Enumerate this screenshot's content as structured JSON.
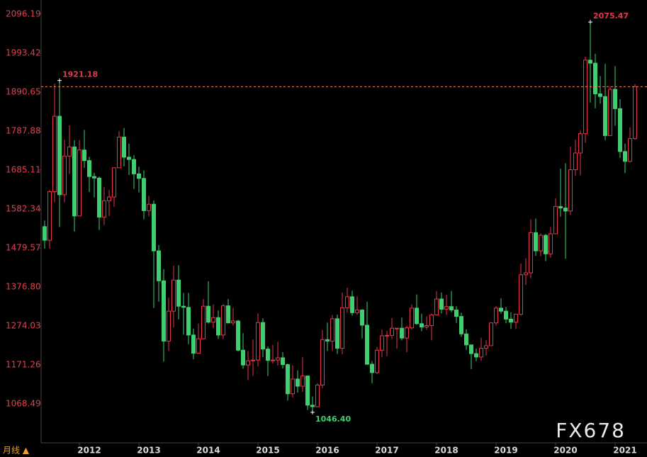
{
  "chart_data": {
    "type": "candlestick",
    "up_color": "#e8354b",
    "down_color": "#3fcf6f",
    "ylim": [
      965.72,
      2133.56
    ],
    "yticks": [
      2096.19,
      1993.42,
      1890.65,
      1787.88,
      1685.11,
      1582.34,
      1479.57,
      {
        "value": 1376.8,
        "label": "1376.80"
      },
      1274.03,
      1171.26,
      1068.49
    ],
    "categories": [
      null,
      null,
      null,
      null,
      null,
      null,
      null,
      "2012",
      null,
      null,
      null,
      null,
      null,
      null,
      null,
      null,
      null,
      null,
      null,
      "2013",
      null,
      null,
      null,
      null,
      null,
      null,
      null,
      null,
      null,
      null,
      null,
      "2014",
      null,
      null,
      null,
      null,
      null,
      null,
      null,
      null,
      null,
      null,
      null,
      "2015",
      null,
      null,
      null,
      null,
      null,
      null,
      null,
      null,
      null,
      null,
      null,
      "2016",
      null,
      null,
      null,
      null,
      null,
      null,
      null,
      null,
      null,
      null,
      null,
      "2017",
      null,
      null,
      null,
      null,
      null,
      null,
      null,
      null,
      null,
      null,
      null,
      "2018",
      null,
      null,
      null,
      null,
      null,
      null,
      null,
      null,
      null,
      null,
      null,
      "2019",
      null,
      null,
      null,
      null,
      null,
      null,
      null,
      null,
      null,
      null,
      null,
      "2020",
      null,
      null,
      null,
      null,
      null,
      null,
      null,
      null,
      null,
      null,
      null,
      "2021",
      null,
      null,
      null,
      null
    ],
    "open": [
      1536,
      1500,
      1628,
      1827,
      1620,
      1722,
      1746,
      1564,
      1738,
      1710,
      1668,
      1664,
      1561,
      1604,
      1614,
      1691,
      1772,
      1719,
      1713,
      1675,
      1663,
      1578,
      1595,
      1472,
      1393,
      1234,
      1313,
      1395,
      1326,
      1323,
      1250,
      1202,
      1240,
      1326,
      1284,
      1296,
      1250,
      1327,
      1282,
      1287,
      1210,
      1171,
      1182,
      1184,
      1283,
      1213,
      1183,
      1184,
      1190,
      1172,
      1095,
      1134,
      1115,
      1142,
      1065,
      1061,
      1118,
      1238,
      1234,
      1293,
      1215,
      1322,
      1351,
      1309,
      1316,
      1276,
      1173,
      1151,
      1210,
      1248,
      1249,
      1268,
      1268,
      1242,
      1269,
      1321,
      1280,
      1271,
      1275,
      1303,
      1345,
      1318,
      1325,
      1316,
      1299,
      1253,
      1224,
      1201,
      1192,
      1215,
      1222,
      1282,
      1321,
      1313,
      1292,
      1284,
      1305,
      1409,
      1414,
      1520,
      1472,
      1513,
      1464,
      1517,
      1589,
      1585,
      1577,
      1686,
      1730,
      1781,
      1975,
      1967,
      1886,
      1879,
      1776,
      1898,
      1847,
      1734,
      1708,
      1768
    ],
    "high": [
      1552,
      1632,
      1913,
      1921.18,
      1765,
      1803,
      1764,
      1764,
      1791,
      1720,
      1678,
      1668,
      1640,
      1632,
      1692,
      1788,
      1796,
      1755,
      1724,
      1694,
      1684,
      1617,
      1605,
      1487,
      1424,
      1348,
      1433,
      1434,
      1361,
      1361,
      1267,
      1280,
      1345,
      1392,
      1331,
      1315,
      1332,
      1345,
      1322,
      1290,
      1255,
      1208,
      1238,
      1307,
      1294,
      1220,
      1224,
      1232,
      1205,
      1175,
      1170,
      1157,
      1191,
      1142,
      1088,
      1123,
      1263,
      1283,
      1303,
      1304,
      1362,
      1375,
      1367,
      1352,
      1318,
      1338,
      1181,
      1219,
      1264,
      1261,
      1295,
      1269,
      1296,
      1274,
      1331,
      1357,
      1306,
      1299,
      1307,
      1366,
      1362,
      1356,
      1366,
      1326,
      1309,
      1265,
      1225,
      1214,
      1243,
      1237,
      1284,
      1326,
      1347,
      1324,
      1310,
      1306,
      1439,
      1452,
      1555,
      1557,
      1518,
      1516,
      1535,
      1611,
      1689,
      1703,
      1747,
      1765,
      1789,
      1984,
      2075.47,
      1992,
      1933,
      1965,
      1906,
      1959,
      1872,
      1755,
      1798,
      1912
    ],
    "low": [
      1478,
      1478,
      1600,
      1535,
      1600,
      1675,
      1523,
      1564,
      1691,
      1627,
      1613,
      1527,
      1540,
      1564,
      1588,
      1691,
      1695,
      1672,
      1635,
      1626,
      1555,
      1563,
      1321,
      1338,
      1180,
      1208,
      1270,
      1291,
      1251,
      1226,
      1186,
      1202,
      1238,
      1280,
      1268,
      1240,
      1240,
      1281,
      1275,
      1206,
      1161,
      1131,
      1142,
      1167,
      1192,
      1142,
      1175,
      1169,
      1162,
      1077,
      1085,
      1098,
      1100,
      1052,
      1046.4,
      1061,
      1110,
      1208,
      1208,
      1200,
      1199,
      1310,
      1301,
      1304,
      1241,
      1171,
      1123,
      1147,
      1191,
      1194,
      1240,
      1214,
      1236,
      1205,
      1264,
      1277,
      1260,
      1264,
      1236,
      1302,
      1307,
      1303,
      1310,
      1282,
      1245,
      1211,
      1160,
      1181,
      1182,
      1196,
      1221,
      1275,
      1306,
      1281,
      1266,
      1266,
      1301,
      1382,
      1400,
      1459,
      1458,
      1445,
      1454,
      1517,
      1562,
      1451,
      1567,
      1670,
      1671,
      1757,
      1863,
      1848,
      1860,
      1764,
      1775,
      1802,
      1717,
      1677,
      1705,
      1765
    ],
    "close": [
      1500,
      1628,
      1827,
      1620,
      1722,
      1746,
      1564,
      1738,
      1710,
      1668,
      1664,
      1561,
      1604,
      1614,
      1691,
      1772,
      1719,
      1713,
      1675,
      1663,
      1578,
      1595,
      1472,
      1393,
      1234,
      1313,
      1395,
      1326,
      1323,
      1250,
      1202,
      1240,
      1326,
      1284,
      1296,
      1250,
      1327,
      1282,
      1287,
      1210,
      1171,
      1182,
      1184,
      1283,
      1213,
      1183,
      1184,
      1190,
      1172,
      1095,
      1134,
      1115,
      1142,
      1065,
      1061,
      1118,
      1238,
      1234,
      1293,
      1215,
      1322,
      1351,
      1309,
      1316,
      1276,
      1173,
      1151,
      1210,
      1248,
      1249,
      1268,
      1268,
      1242,
      1269,
      1321,
      1280,
      1271,
      1275,
      1303,
      1345,
      1318,
      1325,
      1316,
      1299,
      1253,
      1224,
      1201,
      1192,
      1215,
      1222,
      1282,
      1321,
      1313,
      1292,
      1284,
      1305,
      1409,
      1414,
      1520,
      1472,
      1513,
      1464,
      1517,
      1589,
      1585,
      1577,
      1686,
      1730,
      1781,
      1975,
      1967,
      1886,
      1879,
      1776,
      1898,
      1847,
      1734,
      1708,
      1768,
      1905
    ],
    "annotations": [
      {
        "text": "1921.18",
        "value": 1921.18
      },
      {
        "text": "2075.47",
        "value": 2075.47
      },
      {
        "text": "1046.40",
        "value": 1046.4
      }
    ],
    "period_label": "月线 ▲",
    "watermark": "FX678"
  }
}
